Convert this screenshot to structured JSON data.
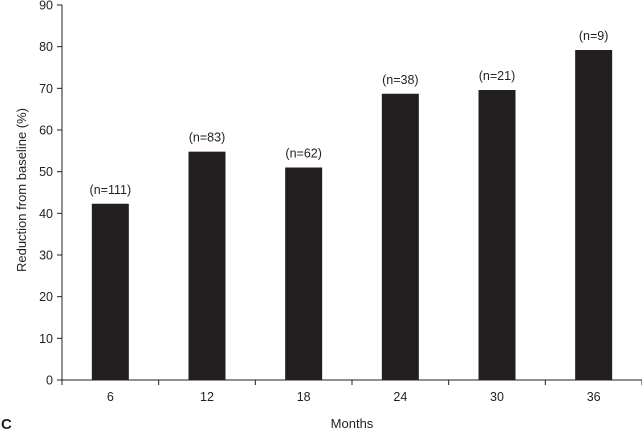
{
  "panel_label": "C",
  "chart_data": {
    "type": "bar",
    "categories": [
      "6",
      "12",
      "18",
      "24",
      "30",
      "36"
    ],
    "values": [
      42.3,
      54.8,
      51.0,
      68.7,
      69.6,
      79.2
    ],
    "bar_labels": [
      "(n=111)",
      "(n=83)",
      "(n=62)",
      "(n=38)",
      "(n=21)",
      "(n=9)"
    ],
    "xlabel": "Months",
    "ylabel": "Reduction from baseline (%)",
    "ylim": [
      0,
      90
    ],
    "yticks": [
      0,
      10,
      20,
      30,
      40,
      50,
      60,
      70,
      80,
      90
    ],
    "grid": false,
    "legend": "none",
    "bar_color": "#231f20",
    "axis_color": "#231f20"
  }
}
